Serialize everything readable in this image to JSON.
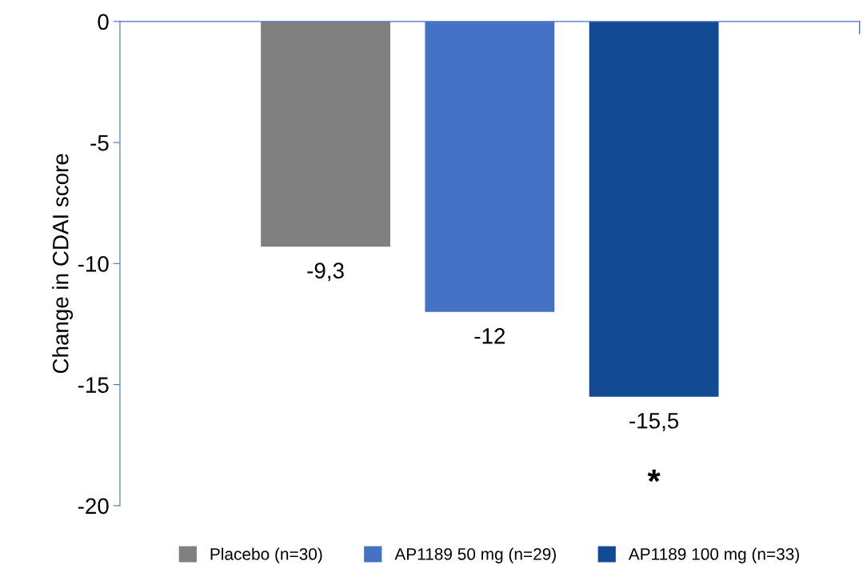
{
  "chart_data": {
    "type": "bar",
    "ylabel": "Change in CDAI score",
    "categories": [
      null
    ],
    "series": [
      {
        "name": "Placebo (n=30)",
        "color": "#808080",
        "values": [
          -9.3
        ],
        "value_labels": [
          "-9,3"
        ]
      },
      {
        "name": "AP1189 50 mg (n=29)",
        "color": "#4472c4",
        "values": [
          -12
        ],
        "value_labels": [
          "-12"
        ]
      },
      {
        "name": "AP1189 100 mg (n=33)",
        "color": "#134a94",
        "values": [
          -15.5
        ],
        "value_labels": [
          "-15,5"
        ]
      }
    ],
    "ylim": [
      -20,
      0
    ],
    "yticks": [
      {
        "value": 0,
        "label": "0"
      },
      {
        "value": -5,
        "label": "-5"
      },
      {
        "value": -10,
        "label": "-10"
      },
      {
        "value": -15,
        "label": "-15"
      },
      {
        "value": -20,
        "label": "-20"
      }
    ],
    "annotations": [
      "*"
    ],
    "grid": false,
    "legend": "bottom"
  }
}
